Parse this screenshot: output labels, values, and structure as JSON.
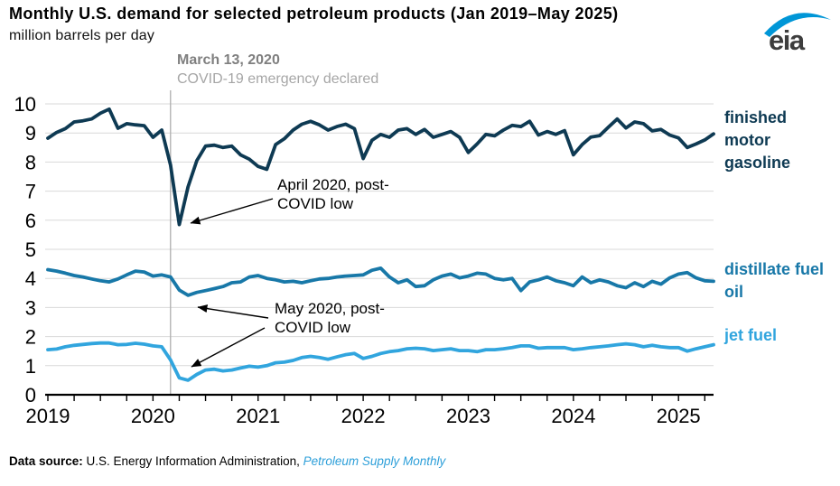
{
  "header": {
    "title": "Monthly U.S. demand for selected petroleum products (Jan 2019–May 2025)",
    "subtitle": "million barrels per day",
    "logo": "eia",
    "logo_color": "#0096d7"
  },
  "chart_data": {
    "type": "line",
    "title": "Monthly U.S. demand for selected petroleum products (Jan 2019–May 2025)",
    "ylabel": "million barrels per day",
    "xlabel": "",
    "ylim": [
      0,
      10
    ],
    "yticks": [
      0,
      1,
      2,
      3,
      4,
      5,
      6,
      7,
      8,
      9,
      10
    ],
    "x_start": "2019-01",
    "x_end": "2025-05",
    "x_tick_years": [
      "2019",
      "2020",
      "2021",
      "2022",
      "2023",
      "2024",
      "2025"
    ],
    "grid": "horizontal",
    "legend_position": "labels-right-of-lines",
    "colors": {
      "grid": "#d9d9d9",
      "axis": "#000000",
      "event_line": "#b3b3b3"
    },
    "series": [
      {
        "name": "finished motor gasoline",
        "color": "#0e3a53",
        "values": [
          8.82,
          9.02,
          9.15,
          9.38,
          9.42,
          9.48,
          9.68,
          9.82,
          9.16,
          9.32,
          9.28,
          9.25,
          8.85,
          9.1,
          7.9,
          5.85,
          7.15,
          8.05,
          8.55,
          8.58,
          8.5,
          8.55,
          8.25,
          8.1,
          7.85,
          7.75,
          8.6,
          8.8,
          9.1,
          9.3,
          9.4,
          9.28,
          9.1,
          9.22,
          9.3,
          9.15,
          8.12,
          8.75,
          8.95,
          8.85,
          9.1,
          9.15,
          8.95,
          9.12,
          8.85,
          8.95,
          9.05,
          8.85,
          8.33,
          8.62,
          8.95,
          8.9,
          9.1,
          9.26,
          9.22,
          9.4,
          8.93,
          9.05,
          8.95,
          9.08,
          8.25,
          8.6,
          8.86,
          8.91,
          9.2,
          9.48,
          9.17,
          9.38,
          9.32,
          9.07,
          9.12,
          8.93,
          8.83,
          8.5,
          8.62,
          8.76,
          8.97
        ]
      },
      {
        "name": "distillate fuel oil",
        "color": "#1878a8",
        "values": [
          4.3,
          4.25,
          4.18,
          4.1,
          4.05,
          3.98,
          3.92,
          3.88,
          3.98,
          4.12,
          4.25,
          4.22,
          4.08,
          4.12,
          4.05,
          3.6,
          3.42,
          3.52,
          3.58,
          3.65,
          3.72,
          3.85,
          3.88,
          4.05,
          4.1,
          4.0,
          3.95,
          3.88,
          3.9,
          3.85,
          3.92,
          3.98,
          4.0,
          4.05,
          4.08,
          4.1,
          4.12,
          4.28,
          4.35,
          4.05,
          3.85,
          3.95,
          3.72,
          3.75,
          3.95,
          4.08,
          4.15,
          4.02,
          4.08,
          4.18,
          4.15,
          4.0,
          3.95,
          4.0,
          3.58,
          3.88,
          3.95,
          4.05,
          3.92,
          3.85,
          3.75,
          4.05,
          3.85,
          3.95,
          3.88,
          3.75,
          3.68,
          3.85,
          3.72,
          3.9,
          3.8,
          4.02,
          4.15,
          4.2,
          4.02,
          3.92,
          3.9
        ]
      },
      {
        "name": "jet fuel",
        "color": "#31a5de",
        "values": [
          1.55,
          1.57,
          1.65,
          1.7,
          1.73,
          1.76,
          1.78,
          1.78,
          1.72,
          1.73,
          1.77,
          1.74,
          1.68,
          1.65,
          1.2,
          0.58,
          0.5,
          0.7,
          0.85,
          0.88,
          0.82,
          0.85,
          0.92,
          0.98,
          0.95,
          1.0,
          1.1,
          1.12,
          1.18,
          1.28,
          1.32,
          1.28,
          1.22,
          1.3,
          1.38,
          1.42,
          1.25,
          1.32,
          1.42,
          1.48,
          1.52,
          1.58,
          1.6,
          1.58,
          1.52,
          1.55,
          1.58,
          1.52,
          1.52,
          1.48,
          1.55,
          1.55,
          1.58,
          1.62,
          1.68,
          1.68,
          1.6,
          1.62,
          1.62,
          1.62,
          1.55,
          1.58,
          1.62,
          1.65,
          1.68,
          1.72,
          1.75,
          1.72,
          1.65,
          1.7,
          1.65,
          1.62,
          1.62,
          1.5,
          1.58,
          1.65,
          1.72
        ]
      }
    ],
    "annotations": {
      "event_line": {
        "label": "March 13, 2020",
        "sublabel": "COVID-19 emergency declared"
      },
      "april_low": {
        "text": "April 2020, post-COVID low"
      },
      "may_low": {
        "text": "May 2020, post-COVID low"
      }
    }
  },
  "footer": {
    "label": "Data source: ",
    "text": "U.S. Energy Information Administration, ",
    "link": "Petroleum Supply Monthly",
    "link_color": "#2d9fd9"
  }
}
